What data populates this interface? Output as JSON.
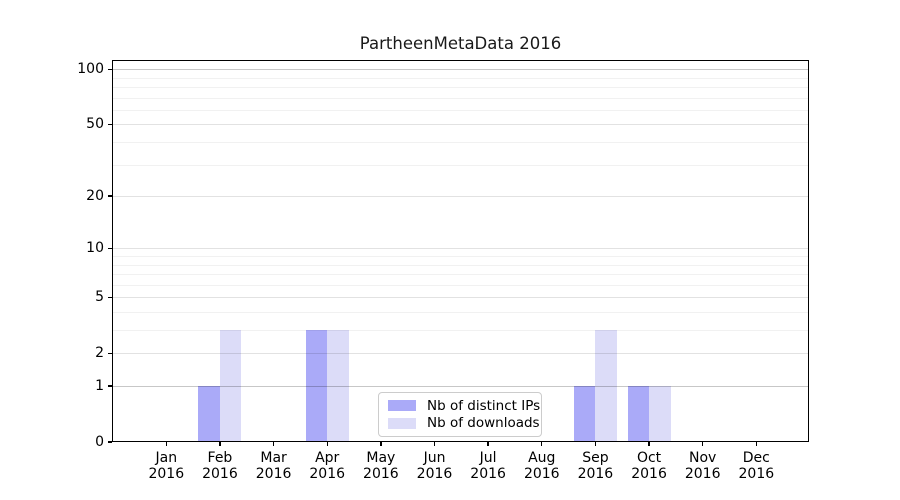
{
  "chart_data": {
    "type": "bar",
    "title": "PartheenMetaData 2016",
    "categories": [
      "Jan",
      "Feb",
      "Mar",
      "Apr",
      "May",
      "Jun",
      "Jul",
      "Aug",
      "Sep",
      "Oct",
      "Nov",
      "Dec"
    ],
    "year_label": "2016",
    "series": [
      {
        "name": "Nb of distinct IPs",
        "color": "#aaaaf8",
        "values": [
          0,
          1,
          0,
          3,
          0,
          0,
          0,
          0,
          1,
          1,
          0,
          0
        ]
      },
      {
        "name": "Nb of downloads",
        "color": "#dcdcf8",
        "values": [
          0,
          3,
          0,
          3,
          0,
          0,
          0,
          0,
          3,
          1,
          0,
          0
        ]
      }
    ],
    "y_axis": {
      "scale": "log1p",
      "ticks": [
        0,
        1,
        2,
        5,
        10,
        20,
        50,
        100
      ],
      "minor_gridlines": [
        3,
        4,
        6,
        7,
        8,
        9,
        30,
        40,
        60,
        70,
        80,
        90
      ],
      "range": [
        0,
        110
      ],
      "emphasized_gridlines": [
        1,
        100
      ]
    },
    "x_axis": {
      "tick_label_format": "month-over-year"
    },
    "grid": "horizontal",
    "legend": {
      "position": "lower-center-inside"
    }
  }
}
